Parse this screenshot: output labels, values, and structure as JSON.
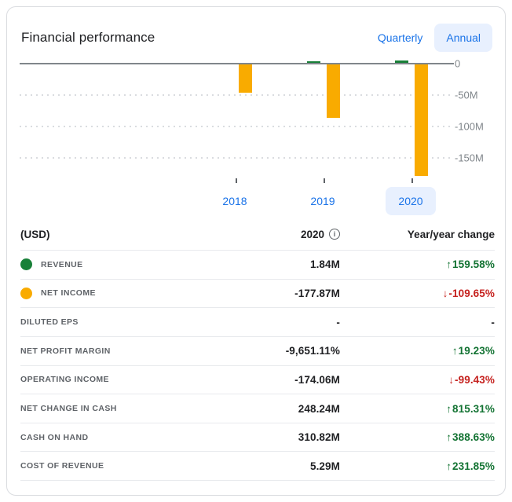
{
  "colors": {
    "accent_blue": "#1a73e8",
    "pill_bg": "#e8f0fe",
    "bar_orange": "#f9ab00",
    "bar_green": "#188038",
    "up_green": "#137333",
    "down_red": "#c5221f",
    "axis_gray": "#80868b",
    "text_dark": "#202124",
    "label_gray": "#5f6368",
    "divider": "#e8eaed",
    "card_border": "#dadce0"
  },
  "header": {
    "title": "Financial performance",
    "toggles": [
      {
        "label": "Quarterly",
        "active": false
      },
      {
        "label": "Annual",
        "active": true
      }
    ]
  },
  "chart_data": {
    "type": "bar",
    "title": "Financial performance",
    "categories": [
      "2018",
      "2019",
      "2020"
    ],
    "series": [
      {
        "name": "Revenue",
        "color": "#188038",
        "unit": "M",
        "values": [
          0,
          0.71,
          1.84
        ]
      },
      {
        "name": "Net income",
        "color": "#f9ab00",
        "unit": "M",
        "values": [
          -45,
          -84.8,
          -177.87
        ]
      }
    ],
    "xlabel": "",
    "ylabel": "",
    "ylim": [
      -185,
      10
    ],
    "yticks": [
      0,
      -50,
      -100,
      -150
    ],
    "ytick_labels": [
      "0",
      "-50M",
      "-100M",
      "-150M"
    ],
    "grid": "dotted-horizontal",
    "legend": "none",
    "selected_category": "2020"
  },
  "table": {
    "columns": [
      "(USD)",
      "2020",
      "Year/year change"
    ],
    "info_icon_glyph": "i",
    "arrow_glyphs": {
      "up": "↑",
      "down": "↓"
    },
    "rows": [
      {
        "label": "REVENUE",
        "dot_color": "#188038",
        "value": "1.84M",
        "change": {
          "direction": "up",
          "text": "159.58%"
        }
      },
      {
        "label": "NET INCOME",
        "dot_color": "#f9ab00",
        "value": "-177.87M",
        "change": {
          "direction": "down",
          "text": "-109.65%"
        }
      },
      {
        "label": "DILUTED EPS",
        "dot_color": null,
        "value": "-",
        "change": {
          "direction": null,
          "text": "-"
        }
      },
      {
        "label": "NET PROFIT MARGIN",
        "dot_color": null,
        "value": "-9,651.11%",
        "change": {
          "direction": "up",
          "text": "19.23%"
        }
      },
      {
        "label": "OPERATING INCOME",
        "dot_color": null,
        "value": "-174.06M",
        "change": {
          "direction": "down",
          "text": "-99.43%"
        }
      },
      {
        "label": "NET CHANGE IN CASH",
        "dot_color": null,
        "value": "248.24M",
        "change": {
          "direction": "up",
          "text": "815.31%"
        }
      },
      {
        "label": "CASH ON HAND",
        "dot_color": null,
        "value": "310.82M",
        "change": {
          "direction": "up",
          "text": "388.63%"
        }
      },
      {
        "label": "COST OF REVENUE",
        "dot_color": null,
        "value": "5.29M",
        "change": {
          "direction": "up",
          "text": "231.85%"
        }
      }
    ]
  }
}
